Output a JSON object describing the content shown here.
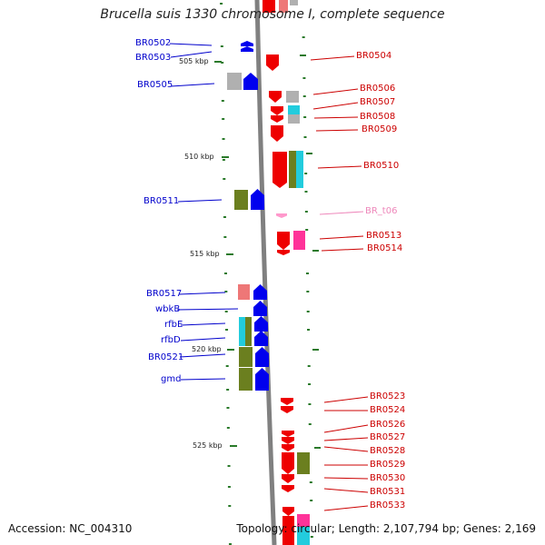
{
  "title": "Brucella suis 1330 chromosome I, complete sequence",
  "footer": {
    "accession": "Accession: NC_004310",
    "topology": "Topology: circular; Length: 2,107,794 bp; Genes: 2,169"
  },
  "colors": {
    "backbone": "#808080",
    "left_label": "#0000cc",
    "right_label": "#cc0000",
    "trna_label": "#ee88bb",
    "tick": "#2a7a2a",
    "gene_forward": "#0000ee",
    "gene_reverse": "#ee0000",
    "gene_trna": "#ff99cc",
    "cog_olive": "#6b7f1f",
    "cog_gray": "#b0b0b0",
    "cog_cyan": "#22ccdd",
    "cog_salmon": "#ee7777",
    "cog_pink": "#ff3399"
  },
  "kbp_labels": [
    "505 kbp",
    "510 kbp",
    "515 kbp",
    "520 kbp",
    "525 kbp"
  ],
  "left_genes": [
    "BR0502",
    "BR0503",
    "BR0505",
    "BR0511",
    "BR0517",
    "wbkB",
    "rfbE",
    "rfbD",
    "BR0521",
    "gmd"
  ],
  "right_genes": [
    "BR0504",
    "BR0506",
    "BR0507",
    "BR0508",
    "BR0509",
    "BR0510",
    "BR_t06",
    "BR0513",
    "BR0514",
    "BR0523",
    "BR0524",
    "BR0526",
    "BR0527",
    "BR0528",
    "BR0529",
    "BR0530",
    "BR0531",
    "BR0533"
  ]
}
